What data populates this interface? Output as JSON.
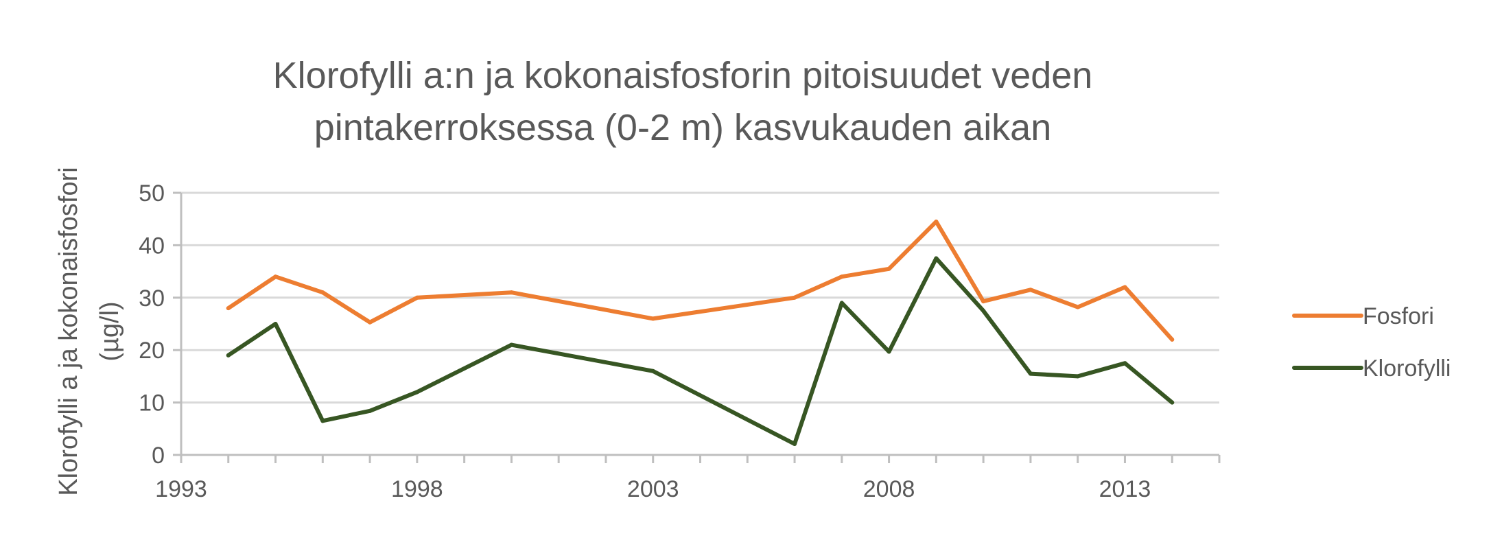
{
  "chart_data": {
    "type": "line",
    "title_lines": [
      "Klorofylli a:n ja kokonaisfosforin pitoisuudet veden",
      "pintakerroksessa (0-2 m) kasvukauden aikan"
    ],
    "ylabel_lines": [
      "Klorofylli a ja kokonaisfosfori",
      "(µg/l)"
    ],
    "xlabel": "",
    "xlim": [
      1993,
      2015
    ],
    "ylim": [
      0,
      50
    ],
    "x_ticks": [
      1993,
      1998,
      2003,
      2008,
      2013
    ],
    "x_tick_labels": [
      "1993",
      "1998",
      "2003",
      "2008",
      "2013"
    ],
    "y_ticks": [
      0,
      10,
      20,
      30,
      40,
      50
    ],
    "y_tick_labels": [
      "0",
      "10",
      "20",
      "30",
      "40",
      "50"
    ],
    "grid": "horizontal",
    "legend_position": "right",
    "series": [
      {
        "name": "Fosfori",
        "color": "#ED7D31",
        "x": [
          1994,
          1995,
          1996,
          1997,
          1998,
          2000,
          2003,
          2006,
          2007,
          2008,
          2009,
          2010,
          2011,
          2012,
          2013,
          2014
        ],
        "y": [
          28,
          34,
          31,
          25.3,
          30,
          31,
          26,
          30,
          34,
          35.5,
          44.5,
          29.3,
          31.5,
          28.2,
          32,
          22
        ]
      },
      {
        "name": "Klorofylli",
        "color": "#375623",
        "x": [
          1994,
          1995,
          1996,
          1997,
          1998,
          2000,
          2003,
          2006,
          2007,
          2008,
          2009,
          2010,
          2011,
          2012,
          2013,
          2014
        ],
        "y": [
          19,
          25,
          6.5,
          8.4,
          12,
          21,
          16,
          2.1,
          29,
          19.7,
          37.5,
          27.5,
          15.5,
          15,
          17.5,
          10
        ]
      }
    ]
  }
}
